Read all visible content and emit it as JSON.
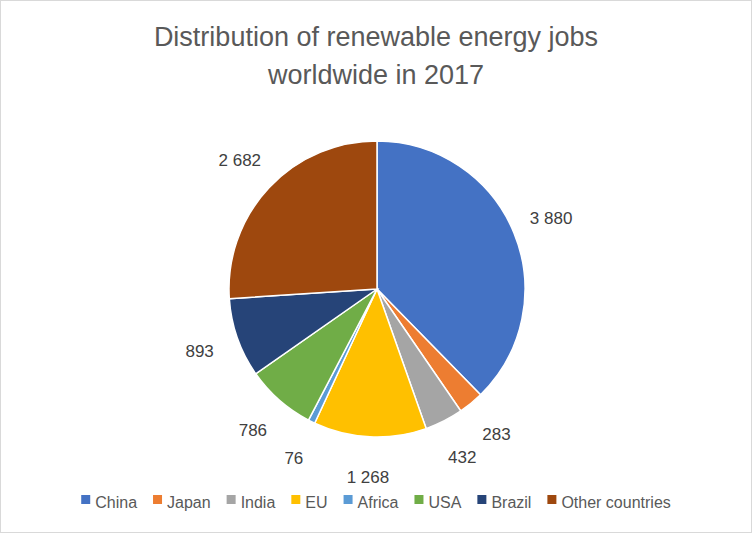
{
  "chart_data": {
    "type": "pie",
    "title": "Distribution of renewable energy jobs worldwide in 2017",
    "categories": [
      "China",
      "Japan",
      "India",
      "EU",
      "Africa",
      "USA",
      "Brazil",
      "Other countries"
    ],
    "values": [
      3880,
      283,
      432,
      1268,
      76,
      786,
      893,
      2682
    ],
    "value_labels": [
      "3 880",
      "283",
      "432",
      "1 268",
      "76",
      "786",
      "893",
      "2 682"
    ],
    "colors": [
      "#4472c4",
      "#ed7d31",
      "#a5a5a5",
      "#ffc000",
      "#5b9bd5",
      "#70ad47",
      "#264478",
      "#9e480e"
    ],
    "data_labels": true,
    "legend": "bottom"
  }
}
